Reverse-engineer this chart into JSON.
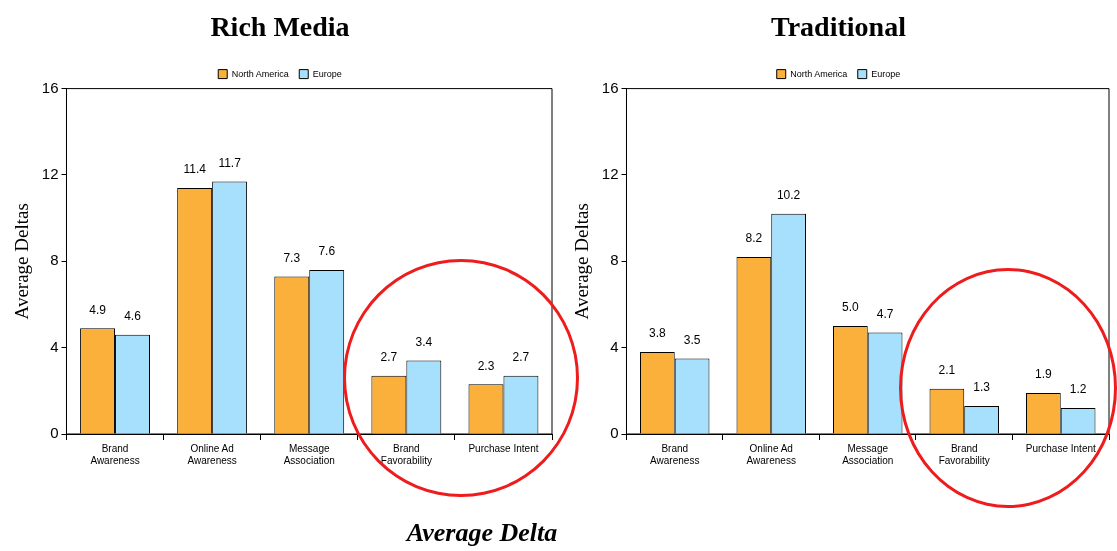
{
  "chart_data": [
    {
      "type": "bar",
      "title": "Rich Media",
      "ylabel": "Average Deltas",
      "categories": [
        "Brand Awareness",
        "Online Ad Awareness",
        "Message Association",
        "Brand Favorability",
        "Purchase Intent"
      ],
      "series": [
        {
          "name": "North America",
          "color": "#fbb03b",
          "values": [
            4.9,
            11.4,
            7.3,
            2.7,
            2.3
          ]
        },
        {
          "name": "Europe",
          "color": "#a6e0fc",
          "values": [
            4.6,
            11.7,
            7.6,
            3.4,
            2.7
          ]
        }
      ],
      "ylim": [
        0,
        16
      ],
      "yticks": [
        0,
        4,
        8,
        12,
        16
      ],
      "grid": false,
      "legend": "top",
      "data_labels": true,
      "annotations": [
        "Average Delta"
      ]
    },
    {
      "type": "bar",
      "title": "Traditional",
      "ylabel": "Average Deltas",
      "categories": [
        "Brand Awareness",
        "Online Ad Awareness",
        "Message Association",
        "Brand Favorability",
        "Purchase Intent"
      ],
      "series": [
        {
          "name": "North America",
          "color": "#fbb03b",
          "values": [
            3.8,
            8.2,
            5.0,
            2.1,
            1.9
          ],
          "value_labels": [
            "3.8",
            "8.2",
            "5.0",
            "2.1",
            "1.9"
          ]
        },
        {
          "name": "Europe",
          "color": "#a6e0fc",
          "values": [
            3.5,
            10.2,
            4.7,
            1.3,
            1.2
          ],
          "value_labels": [
            "3.5",
            "10.2",
            "4.7",
            "1.3",
            "1.2"
          ]
        }
      ],
      "ylim": [
        0,
        16
      ],
      "yticks": [
        0,
        4,
        8,
        12,
        16
      ],
      "grid": false,
      "legend": "top"
    }
  ]
}
